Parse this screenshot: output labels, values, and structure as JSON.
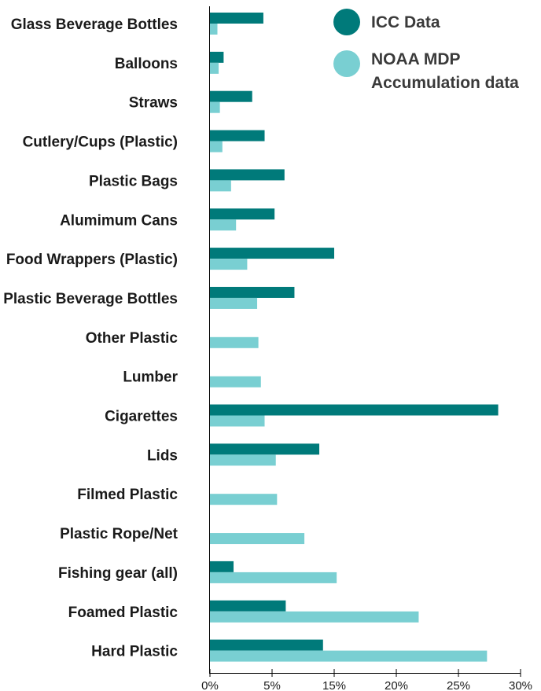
{
  "chart_data": {
    "type": "bar",
    "orientation": "horizontal",
    "categories": [
      "Glass Beverage Bottles",
      "Balloons",
      "Straws",
      "Cutlery/Cups (Plastic)",
      "Plastic Bags",
      "Alumimum Cans",
      "Food Wrappers (Plastic)",
      "Plastic Beverage Bottles",
      "Other Plastic",
      "Lumber",
      "Cigarettes",
      "Lids",
      "Filmed Plastic",
      "Plastic Rope/Net",
      "Fishing gear (all)",
      "Foamed Plastic",
      "Hard Plastic"
    ],
    "series": [
      {
        "name": "ICC Data",
        "color": "#007a7a",
        "values": [
          4.3,
          1.1,
          3.4,
          4.4,
          6.0,
          5.2,
          10.0,
          6.8,
          0,
          0,
          23.2,
          8.8,
          0,
          0,
          1.9,
          6.1,
          9.1
        ]
      },
      {
        "name": "NOAA MDP Accumulation data",
        "color": "#79cfd2",
        "values": [
          0.6,
          0.7,
          0.8,
          1.0,
          1.7,
          2.1,
          3.0,
          3.8,
          3.9,
          4.1,
          4.4,
          5.3,
          5.4,
          7.6,
          10.2,
          16.8,
          22.3
        ]
      }
    ],
    "xticks": [
      "0%",
      "5%",
      "15%",
      "20%",
      "25%",
      "30%"
    ],
    "xlim": [
      0,
      25
    ],
    "legend": {
      "placement": "top-right",
      "items": [
        {
          "label_lines": [
            "ICC Data"
          ],
          "color": "#007a7a"
        },
        {
          "label_lines": [
            "NOAA MDP",
            "Accumulation data"
          ],
          "color": "#79cfd2"
        }
      ]
    },
    "grid": false
  }
}
